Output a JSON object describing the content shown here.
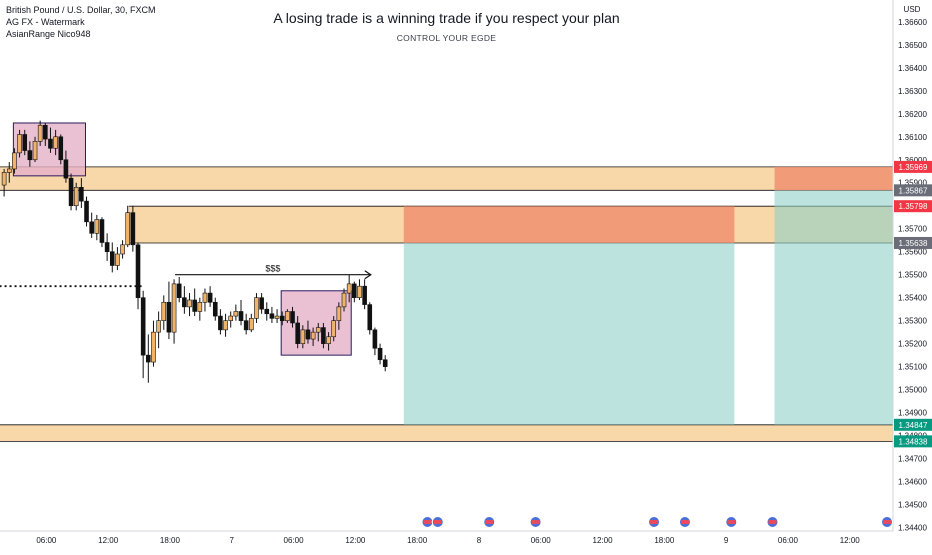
{
  "header": {
    "symbol_line": "British Pound / U.S. Dollar, 30, FXCM",
    "indicator_1": "AG FX - Watermark",
    "indicator_2": "AsianRange Nico948"
  },
  "watermark": {
    "title": "A losing trade is a winning trade if you respect your plan",
    "subtitle": "CONTROL YOUR EGDE"
  },
  "annotation": {
    "liquidity_label": "$$$"
  },
  "colors": {
    "up": "#f0b36a",
    "down": "#111111",
    "zone": "#f5c98c",
    "asian_box": "#e5b0c8",
    "stop_fill": "#f08a6c",
    "target_fill": "#8fd0c6",
    "badge_red": "#f23645",
    "badge_gray": "#6a6d78",
    "badge_green": "#089981"
  },
  "chart_data": {
    "type": "candlestick",
    "symbol": "British Pound / U.S. Dollar, 30, FXCM",
    "currency": "USD",
    "y_axis": {
      "label": "USD",
      "ylim": [
        1.34385,
        1.36695
      ],
      "ticks": [
        "1.36600",
        "1.36500",
        "1.36400",
        "1.36300",
        "1.36200",
        "1.36100",
        "1.36000",
        "1.35900",
        "1.35800",
        "1.35700",
        "1.35600",
        "1.35500",
        "1.35400",
        "1.35300",
        "1.35200",
        "1.35100",
        "1.35000",
        "1.34900",
        "1.34800",
        "1.34700",
        "1.34600",
        "1.34500",
        "1.34400"
      ]
    },
    "x_axis": {
      "ticks": [
        {
          "label": "06:00",
          "t": 6
        },
        {
          "label": "12:00",
          "t": 12
        },
        {
          "label": "18:00",
          "t": 18
        },
        {
          "label": "7",
          "t": 24
        },
        {
          "label": "06:00",
          "t": 30
        },
        {
          "label": "12:00",
          "t": 36
        },
        {
          "label": "18:00",
          "t": 42
        },
        {
          "label": "8",
          "t": 48
        },
        {
          "label": "06:00",
          "t": 54
        },
        {
          "label": "12:00",
          "t": 60
        },
        {
          "label": "18:00",
          "t": 66
        },
        {
          "label": "9",
          "t": 72
        },
        {
          "label": "06:00",
          "t": 78
        },
        {
          "label": "12:00",
          "t": 84
        }
      ],
      "t_min": 1.5,
      "t_max": 88.2
    },
    "candles": [
      {
        "t": 1.9,
        "o": 1.3589,
        "h": 1.3596,
        "l": 1.3584,
        "c": 1.35945
      },
      {
        "t": 2.4,
        "o": 1.35945,
        "h": 1.3599,
        "l": 1.359,
        "c": 1.3596
      },
      {
        "t": 2.9,
        "o": 1.3596,
        "h": 1.3605,
        "l": 1.3594,
        "c": 1.3603
      },
      {
        "t": 3.4,
        "o": 1.3603,
        "h": 1.3613,
        "l": 1.3601,
        "c": 1.3611
      },
      {
        "t": 3.9,
        "o": 1.3611,
        "h": 1.3613,
        "l": 1.3602,
        "c": 1.3604
      },
      {
        "t": 4.4,
        "o": 1.3604,
        "h": 1.3608,
        "l": 1.3597,
        "c": 1.36
      },
      {
        "t": 4.9,
        "o": 1.36,
        "h": 1.361,
        "l": 1.3599,
        "c": 1.3608
      },
      {
        "t": 5.4,
        "o": 1.3608,
        "h": 1.3617,
        "l": 1.3606,
        "c": 1.3615
      },
      {
        "t": 5.9,
        "o": 1.3615,
        "h": 1.3616,
        "l": 1.3606,
        "c": 1.3609
      },
      {
        "t": 6.4,
        "o": 1.3609,
        "h": 1.3614,
        "l": 1.3603,
        "c": 1.3605
      },
      {
        "t": 6.9,
        "o": 1.3605,
        "h": 1.3613,
        "l": 1.3602,
        "c": 1.361
      },
      {
        "t": 7.4,
        "o": 1.361,
        "h": 1.3611,
        "l": 1.3598,
        "c": 1.36
      },
      {
        "t": 7.9,
        "o": 1.36,
        "h": 1.3604,
        "l": 1.359,
        "c": 1.3592
      },
      {
        "t": 8.4,
        "o": 1.3592,
        "h": 1.3594,
        "l": 1.3578,
        "c": 1.358
      },
      {
        "t": 8.9,
        "o": 1.358,
        "h": 1.359,
        "l": 1.3578,
        "c": 1.3588
      },
      {
        "t": 9.4,
        "o": 1.3588,
        "h": 1.3592,
        "l": 1.3579,
        "c": 1.3582
      },
      {
        "t": 9.9,
        "o": 1.3582,
        "h": 1.3584,
        "l": 1.3571,
        "c": 1.3573
      },
      {
        "t": 10.4,
        "o": 1.3573,
        "h": 1.3577,
        "l": 1.3566,
        "c": 1.3568
      },
      {
        "t": 10.9,
        "o": 1.3568,
        "h": 1.3576,
        "l": 1.3565,
        "c": 1.3574
      },
      {
        "t": 11.4,
        "o": 1.3574,
        "h": 1.3575,
        "l": 1.3562,
        "c": 1.3564
      },
      {
        "t": 11.9,
        "o": 1.3564,
        "h": 1.3568,
        "l": 1.3556,
        "c": 1.356
      },
      {
        "t": 12.4,
        "o": 1.356,
        "h": 1.3564,
        "l": 1.3551,
        "c": 1.3554
      },
      {
        "t": 12.9,
        "o": 1.3554,
        "h": 1.3562,
        "l": 1.3552,
        "c": 1.3559
      },
      {
        "t": 13.4,
        "o": 1.3559,
        "h": 1.3565,
        "l": 1.3557,
        "c": 1.3563
      },
      {
        "t": 13.9,
        "o": 1.3563,
        "h": 1.358,
        "l": 1.3562,
        "c": 1.3577
      },
      {
        "t": 14.4,
        "o": 1.3577,
        "h": 1.358,
        "l": 1.356,
        "c": 1.3563
      },
      {
        "t": 14.9,
        "o": 1.3563,
        "h": 1.3564,
        "l": 1.3535,
        "c": 1.354
      },
      {
        "t": 15.4,
        "o": 1.354,
        "h": 1.3543,
        "l": 1.3505,
        "c": 1.3515
      },
      {
        "t": 15.9,
        "o": 1.3515,
        "h": 1.3524,
        "l": 1.3503,
        "c": 1.3512
      },
      {
        "t": 16.4,
        "o": 1.3512,
        "h": 1.353,
        "l": 1.351,
        "c": 1.3525
      },
      {
        "t": 16.9,
        "o": 1.3525,
        "h": 1.3534,
        "l": 1.3518,
        "c": 1.353
      },
      {
        "t": 17.4,
        "o": 1.353,
        "h": 1.3541,
        "l": 1.3526,
        "c": 1.3538
      },
      {
        "t": 17.9,
        "o": 1.3538,
        "h": 1.3547,
        "l": 1.3522,
        "c": 1.3525
      },
      {
        "t": 18.4,
        "o": 1.3525,
        "h": 1.3548,
        "l": 1.352,
        "c": 1.3546
      },
      {
        "t": 18.9,
        "o": 1.3546,
        "h": 1.3549,
        "l": 1.3538,
        "c": 1.354
      },
      {
        "t": 19.4,
        "o": 1.354,
        "h": 1.3545,
        "l": 1.3533,
        "c": 1.3536
      },
      {
        "t": 19.9,
        "o": 1.3536,
        "h": 1.3542,
        "l": 1.3532,
        "c": 1.3539
      },
      {
        "t": 20.4,
        "o": 1.3539,
        "h": 1.3544,
        "l": 1.3532,
        "c": 1.3534
      },
      {
        "t": 20.9,
        "o": 1.3534,
        "h": 1.354,
        "l": 1.353,
        "c": 1.3538
      },
      {
        "t": 21.4,
        "o": 1.3538,
        "h": 1.3544,
        "l": 1.3534,
        "c": 1.3542
      },
      {
        "t": 21.9,
        "o": 1.3542,
        "h": 1.3545,
        "l": 1.3536,
        "c": 1.3538
      },
      {
        "t": 22.4,
        "o": 1.3538,
        "h": 1.354,
        "l": 1.353,
        "c": 1.3532
      },
      {
        "t": 22.9,
        "o": 1.3532,
        "h": 1.3535,
        "l": 1.3524,
        "c": 1.3526
      },
      {
        "t": 23.4,
        "o": 1.3526,
        "h": 1.3533,
        "l": 1.3523,
        "c": 1.353
      },
      {
        "t": 23.9,
        "o": 1.353,
        "h": 1.3534,
        "l": 1.3527,
        "c": 1.3532
      },
      {
        "t": 24.4,
        "o": 1.3532,
        "h": 1.3537,
        "l": 1.353,
        "c": 1.3534
      },
      {
        "t": 24.9,
        "o": 1.3534,
        "h": 1.3539,
        "l": 1.3528,
        "c": 1.353
      },
      {
        "t": 25.4,
        "o": 1.353,
        "h": 1.3533,
        "l": 1.3524,
        "c": 1.3526
      },
      {
        "t": 25.9,
        "o": 1.3526,
        "h": 1.3533,
        "l": 1.3525,
        "c": 1.3531
      },
      {
        "t": 26.4,
        "o": 1.3531,
        "h": 1.3542,
        "l": 1.3529,
        "c": 1.354
      },
      {
        "t": 26.9,
        "o": 1.354,
        "h": 1.3542,
        "l": 1.3533,
        "c": 1.3535
      },
      {
        "t": 27.4,
        "o": 1.3535,
        "h": 1.3538,
        "l": 1.353,
        "c": 1.3533
      },
      {
        "t": 27.9,
        "o": 1.3533,
        "h": 1.3536,
        "l": 1.3529,
        "c": 1.3531
      },
      {
        "t": 28.4,
        "o": 1.3531,
        "h": 1.3535,
        "l": 1.3529,
        "c": 1.3532
      },
      {
        "t": 28.9,
        "o": 1.3532,
        "h": 1.3534,
        "l": 1.3528,
        "c": 1.353
      },
      {
        "t": 29.4,
        "o": 1.353,
        "h": 1.3535,
        "l": 1.3529,
        "c": 1.3534
      },
      {
        "t": 29.9,
        "o": 1.3534,
        "h": 1.3536,
        "l": 1.3527,
        "c": 1.3529
      },
      {
        "t": 30.4,
        "o": 1.3529,
        "h": 1.3532,
        "l": 1.3518,
        "c": 1.352
      },
      {
        "t": 30.9,
        "o": 1.352,
        "h": 1.3528,
        "l": 1.3518,
        "c": 1.3526
      },
      {
        "t": 31.4,
        "o": 1.3526,
        "h": 1.353,
        "l": 1.352,
        "c": 1.3522
      },
      {
        "t": 31.9,
        "o": 1.3522,
        "h": 1.3527,
        "l": 1.3519,
        "c": 1.3525
      },
      {
        "t": 32.4,
        "o": 1.3525,
        "h": 1.3529,
        "l": 1.3521,
        "c": 1.3527
      },
      {
        "t": 32.9,
        "o": 1.3527,
        "h": 1.3529,
        "l": 1.3518,
        "c": 1.352
      },
      {
        "t": 33.4,
        "o": 1.352,
        "h": 1.3525,
        "l": 1.3517,
        "c": 1.3523
      },
      {
        "t": 33.9,
        "o": 1.3523,
        "h": 1.3532,
        "l": 1.3521,
        "c": 1.353
      },
      {
        "t": 34.4,
        "o": 1.353,
        "h": 1.3538,
        "l": 1.3526,
        "c": 1.3536
      },
      {
        "t": 34.9,
        "o": 1.3536,
        "h": 1.3544,
        "l": 1.3534,
        "c": 1.3542
      },
      {
        "t": 35.4,
        "o": 1.3542,
        "h": 1.355,
        "l": 1.3538,
        "c": 1.3546
      },
      {
        "t": 35.9,
        "o": 1.3546,
        "h": 1.3547,
        "l": 1.3538,
        "c": 1.354
      },
      {
        "t": 36.4,
        "o": 1.354,
        "h": 1.3548,
        "l": 1.3539,
        "c": 1.3545
      },
      {
        "t": 36.9,
        "o": 1.3545,
        "h": 1.3548,
        "l": 1.3535,
        "c": 1.3537
      },
      {
        "t": 37.4,
        "o": 1.3537,
        "h": 1.3538,
        "l": 1.3524,
        "c": 1.3526
      },
      {
        "t": 37.9,
        "o": 1.3526,
        "h": 1.3527,
        "l": 1.3515,
        "c": 1.3518
      },
      {
        "t": 38.4,
        "o": 1.3518,
        "h": 1.352,
        "l": 1.3511,
        "c": 1.3513
      },
      {
        "t": 38.9,
        "o": 1.3513,
        "h": 1.3515,
        "l": 1.3508,
        "c": 1.351
      }
    ],
    "zones": [
      {
        "name": "supply-zone-upper",
        "y1": 1.35969,
        "y2": 1.35867,
        "t1": 1.5,
        "t2": 88.2
      },
      {
        "name": "supply-zone-middle",
        "y1": 1.35798,
        "y2": 1.35638,
        "t1": 14.0,
        "t2": 88.2
      },
      {
        "name": "demand-zone-lower",
        "y1": 1.34847,
        "y2": 1.34775,
        "t1": 1.5,
        "t2": 88.2
      }
    ],
    "asian_ranges": [
      {
        "t1": 2.8,
        "t2": 9.8,
        "high": 1.36145,
        "low": 1.3596
      },
      {
        "t1": 28.8,
        "t2": 35.6,
        "high": 1.3542,
        "low": 1.3517
      }
    ],
    "asian_boxes_fill": [
      {
        "t1": 2.8,
        "t2": 9.8,
        "y1": 1.3616,
        "y2": 1.3593
      },
      {
        "t1": 28.8,
        "t2": 35.6,
        "y1": 1.3543,
        "y2": 1.3515
      }
    ],
    "positions": [
      {
        "t1": 40.7,
        "t2": 72.8,
        "entry": 1.35638,
        "stop": 1.35798,
        "target": 1.34847
      },
      {
        "t1": 76.7,
        "t2": 90.6,
        "entry": 1.35867,
        "stop": 1.35969,
        "target": 1.34847
      }
    ],
    "liquidity_line": {
      "t1": 18.5,
      "t2": 37.5,
      "y": 1.355
    },
    "dotted_level": {
      "t1": 0,
      "t2": 15.5,
      "y": 1.3545
    },
    "price_badges": [
      {
        "value": "1.35969",
        "y": 1.35969,
        "color": "red"
      },
      {
        "value": "1.35867",
        "y": 1.35867,
        "color": "gray"
      },
      {
        "value": "1.35798",
        "y": 1.35798,
        "color": "red"
      },
      {
        "value": "1.35638",
        "y": 1.35638,
        "color": "gray"
      },
      {
        "value": "1.34847",
        "y": 1.34847,
        "color": "green"
      },
      {
        "value": "1.34838",
        "y": 1.34775,
        "color": "green"
      }
    ],
    "event_markers": [
      43.0,
      44.0,
      49.0,
      53.5,
      65.0,
      68.0,
      72.5,
      76.5,
      92.0
    ]
  }
}
